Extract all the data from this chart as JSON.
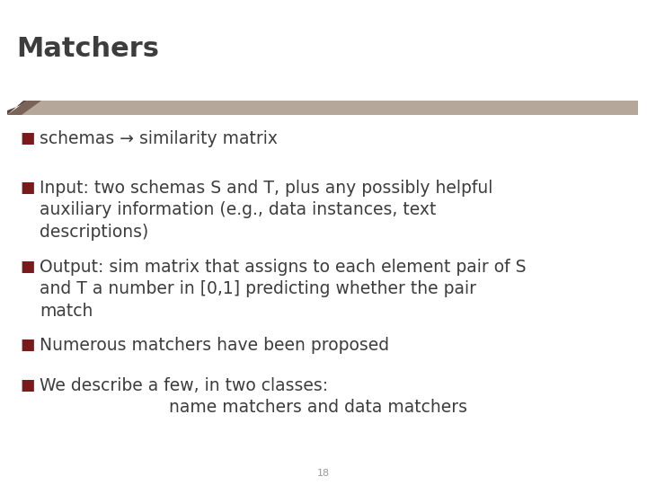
{
  "title": "Matchers",
  "title_color": "#3d3d3d",
  "title_fontsize": 22,
  "background_color": "#ffffff",
  "bullet_color": "#7b1a1a",
  "text_color": "#3d3d3d",
  "page_number": "18",
  "bullet_items": [
    "schemas → similarity matrix",
    "Input: two schemas S and T, plus any possibly helpful\nauxiliary information (e.g., data instances, text\ndescriptions)",
    "Output: sim matrix that assigns to each element pair of S\nand T a number in [0,1] predicting whether the pair\nmatch",
    "Numerous matchers have been proposed",
    "We describe a few, in two classes:\n                        name matchers and data matchers"
  ],
  "body_fontsize": 13.5,
  "bar_main_color": "#b5a89a",
  "bar_dark_color": "#7a6358",
  "bar_darker_color": "#5c4840"
}
